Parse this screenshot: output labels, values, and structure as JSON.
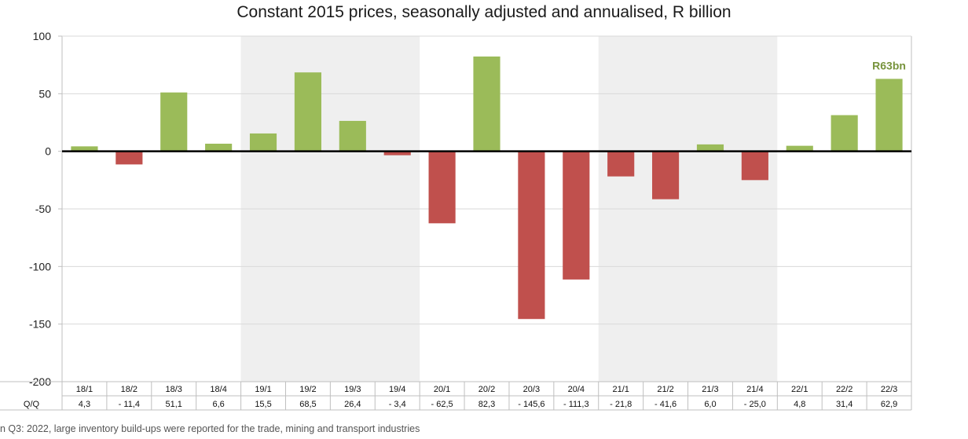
{
  "title": "Constant 2015 prices, seasonally adjusted and annualised, R billion",
  "footnote": "n Q3: 2022, large inventory build-ups were reported for the trade, mining and transport industries",
  "colors": {
    "positive": "#9bbb59",
    "negative": "#c0504d",
    "shade": "#efefef",
    "annotation": "#77933c"
  },
  "chart_data": {
    "type": "bar",
    "title": "Constant 2015 prices, seasonally adjusted and annualised, R billion",
    "xlabel": "",
    "ylabel": "",
    "ylim": [
      -200,
      100
    ],
    "yticks": [
      100,
      50,
      0,
      -50,
      -100,
      -150,
      -200
    ],
    "ytick_labels": [
      "100",
      "50",
      "0",
      "-50",
      "-100",
      "-150",
      "-200"
    ],
    "grid": true,
    "categories": [
      "18/1",
      "18/2",
      "18/3",
      "18/4",
      "19/1",
      "19/2",
      "19/3",
      "19/4",
      "20/1",
      "20/2",
      "20/3",
      "20/4",
      "21/1",
      "21/2",
      "21/3",
      "21/4",
      "22/1",
      "22/2",
      "22/3"
    ],
    "values": [
      4.3,
      -11.4,
      51.1,
      6.6,
      15.5,
      68.5,
      26.4,
      -3.4,
      -62.5,
      82.3,
      -145.6,
      -111.3,
      -21.8,
      -41.6,
      6.0,
      -25.0,
      4.8,
      31.4,
      62.9
    ],
    "table_row_label": "Q/Q",
    "table_values": [
      "4,3",
      "- 11,4",
      "51,1",
      "6,6",
      "15,5",
      "68,5",
      "26,4",
      "- 3,4",
      "- 62,5",
      "82,3",
      "- 145,6",
      "- 111,3",
      "- 21,8",
      "- 41,6",
      "6,0",
      "- 25,0",
      "4,8",
      "31,4",
      "62,9"
    ],
    "shaded_years": [
      "19",
      "21"
    ],
    "annotation": {
      "text": "R63bn",
      "category": "22/3"
    }
  }
}
